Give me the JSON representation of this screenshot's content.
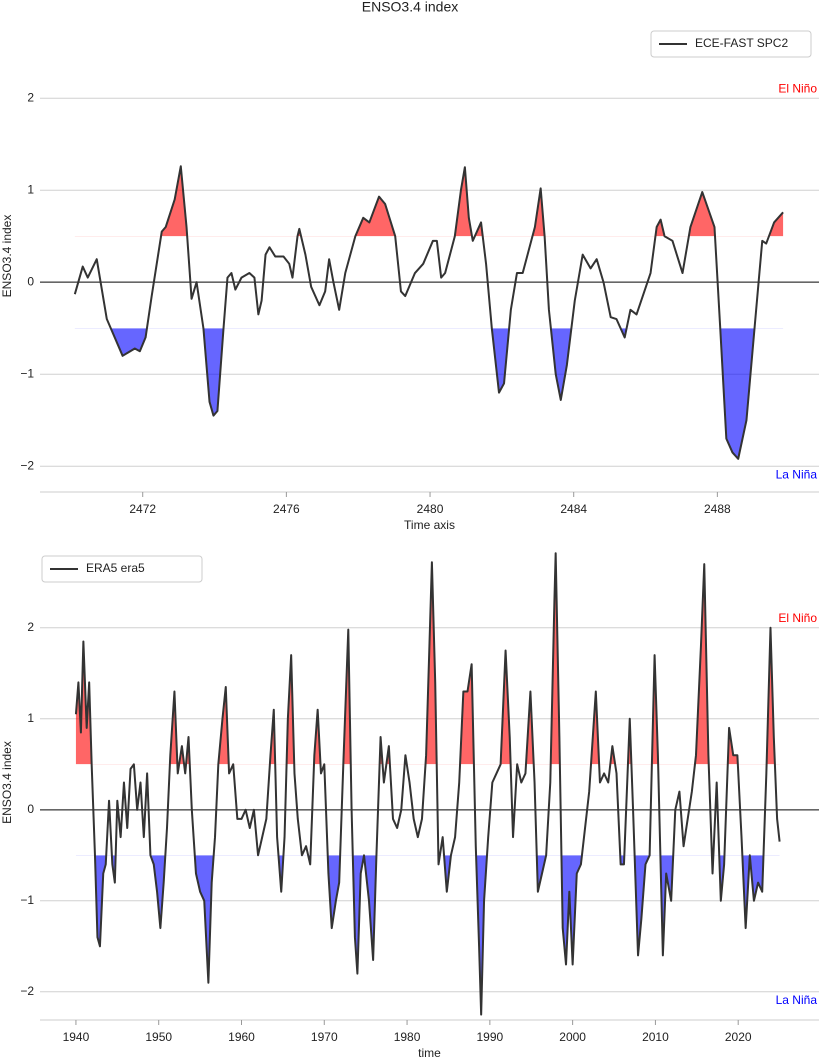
{
  "chart_data": [
    {
      "type": "line",
      "title": "ENSO3.4 index",
      "xlabel": "Time axis",
      "ylabel": "ENSO3.4 index",
      "x": [
        2470.11,
        2470.33,
        2470.47,
        2470.72,
        2471.0,
        2471.44,
        2471.78,
        2471.92,
        2472.08,
        2472.25,
        2472.53,
        2472.64,
        2472.89,
        2473.06,
        2473.22,
        2473.36,
        2473.5,
        2473.69,
        2473.86,
        2473.97,
        2474.08,
        2474.25,
        2474.36,
        2474.47,
        2474.58,
        2474.75,
        2474.97,
        2475.11,
        2475.22,
        2475.31,
        2475.42,
        2475.53,
        2475.69,
        2475.92,
        2476.08,
        2476.17,
        2476.31,
        2476.36,
        2476.53,
        2476.69,
        2476.92,
        2477.08,
        2477.19,
        2477.31,
        2477.47,
        2477.64,
        2477.92,
        2478.14,
        2478.31,
        2478.58,
        2478.75,
        2479.03,
        2479.19,
        2479.31,
        2479.58,
        2479.81,
        2480.08,
        2480.19,
        2480.31,
        2480.42,
        2480.69,
        2480.86,
        2480.97,
        2481.08,
        2481.19,
        2481.42,
        2481.56,
        2481.72,
        2481.92,
        2482.06,
        2482.25,
        2482.42,
        2482.58,
        2482.75,
        2482.92,
        2483.08,
        2483.19,
        2483.31,
        2483.5,
        2483.64,
        2483.81,
        2484.03,
        2484.25,
        2484.47,
        2484.64,
        2484.83,
        2485.03,
        2485.19,
        2485.42,
        2485.58,
        2485.75,
        2486.14,
        2486.31,
        2486.42,
        2486.53,
        2486.75,
        2487.03,
        2487.25,
        2487.58,
        2487.92,
        2488.08,
        2488.25,
        2488.42,
        2488.58,
        2488.81,
        2489.08,
        2489.25,
        2489.36,
        2489.58,
        2489.83
      ],
      "series": [
        {
          "name": "ECE-FAST SPC2",
          "color": "#333333",
          "values": [
            -0.13,
            0.17,
            0.05,
            0.25,
            -0.4,
            -0.8,
            -0.72,
            -0.75,
            -0.6,
            -0.15,
            0.55,
            0.6,
            0.9,
            1.26,
            0.6,
            -0.18,
            0.0,
            -0.5,
            -1.3,
            -1.45,
            -1.4,
            -0.5,
            0.05,
            0.1,
            -0.08,
            0.05,
            0.1,
            0.05,
            -0.35,
            -0.2,
            0.3,
            0.38,
            0.28,
            0.28,
            0.2,
            0.05,
            0.5,
            0.58,
            0.3,
            -0.05,
            -0.25,
            -0.1,
            0.25,
            0.0,
            -0.3,
            0.1,
            0.5,
            0.7,
            0.65,
            0.93,
            0.85,
            0.5,
            -0.1,
            -0.15,
            0.1,
            0.2,
            0.45,
            0.45,
            0.05,
            0.1,
            0.5,
            1.0,
            1.25,
            0.7,
            0.45,
            0.65,
            0.2,
            -0.5,
            -1.2,
            -1.1,
            -0.3,
            0.1,
            0.1,
            0.35,
            0.6,
            1.02,
            0.5,
            -0.3,
            -1.0,
            -1.28,
            -0.9,
            -0.2,
            0.3,
            0.15,
            0.25,
            0.0,
            -0.38,
            -0.4,
            -0.6,
            -0.3,
            -0.35,
            0.1,
            0.6,
            0.68,
            0.5,
            0.45,
            0.1,
            0.6,
            0.98,
            0.6,
            -0.5,
            -1.7,
            -1.85,
            -1.92,
            -1.5,
            -0.3,
            0.45,
            0.42,
            0.65,
            0.76
          ]
        }
      ],
      "xlim": [
        2469.14,
        2490.83
      ],
      "ylim": [
        -2.28,
        2.85
      ],
      "xticks": [
        2472,
        2476,
        2480,
        2484,
        2488
      ],
      "yticks": [
        {
          "value": -2,
          "label": "−2"
        },
        {
          "value": -1,
          "label": "−1"
        },
        0,
        1,
        2
      ],
      "grid": true,
      "legend": "upper right",
      "thresholds": {
        "el_nino": 0.5,
        "la_nina": -0.5
      },
      "el_nino_color": "#ff0000",
      "la_nina_color": "#0000ff",
      "annotations": {
        "el_nino": "El Niño",
        "la_nina": "La Niña"
      }
    },
    {
      "type": "line",
      "xlabel": "time",
      "ylabel": "ENSO3.4 index",
      "x": [
        1940.0,
        1940.3,
        1940.6,
        1940.9,
        1941.3,
        1941.6,
        1941.9,
        1942.3,
        1942.6,
        1942.9,
        1943.3,
        1943.6,
        1944.0,
        1944.4,
        1944.7,
        1945.0,
        1945.4,
        1945.8,
        1946.2,
        1946.6,
        1947.0,
        1947.4,
        1947.8,
        1948.2,
        1948.6,
        1949.0,
        1949.4,
        1949.8,
        1950.2,
        1950.6,
        1951.0,
        1951.4,
        1951.9,
        1952.3,
        1952.8,
        1953.2,
        1953.6,
        1954.0,
        1954.5,
        1955.0,
        1955.5,
        1956.0,
        1956.4,
        1956.8,
        1957.2,
        1957.7,
        1958.1,
        1958.5,
        1959.0,
        1959.5,
        1960.0,
        1960.5,
        1961.0,
        1961.5,
        1962.0,
        1962.5,
        1963.0,
        1963.5,
        1963.9,
        1964.3,
        1964.8,
        1965.2,
        1965.6,
        1966.0,
        1966.4,
        1966.8,
        1967.3,
        1967.8,
        1968.3,
        1968.8,
        1969.2,
        1969.6,
        1970.0,
        1970.5,
        1970.9,
        1971.4,
        1971.8,
        1972.3,
        1972.9,
        1973.3,
        1973.7,
        1974.0,
        1974.4,
        1974.8,
        1975.4,
        1975.9,
        1976.3,
        1976.8,
        1977.2,
        1977.8,
        1978.3,
        1978.8,
        1979.3,
        1979.8,
        1980.3,
        1980.8,
        1981.3,
        1981.8,
        1982.3,
        1982.7,
        1983.0,
        1983.4,
        1983.8,
        1984.3,
        1984.8,
        1985.3,
        1985.8,
        1986.3,
        1986.8,
        1987.3,
        1987.8,
        1988.3,
        1988.7,
        1988.95,
        1989.3,
        1989.8,
        1990.3,
        1990.8,
        1991.3,
        1991.9,
        1992.4,
        1992.8,
        1993.3,
        1993.8,
        1994.3,
        1994.9,
        1995.4,
        1995.8,
        1996.3,
        1996.8,
        1997.3,
        1997.8,
        1997.95,
        1998.4,
        1998.8,
        1999.2,
        1999.6,
        2000.0,
        2000.5,
        2001.0,
        2001.5,
        2002.0,
        2002.8,
        2003.3,
        2003.8,
        2004.3,
        2004.8,
        2005.3,
        2005.8,
        2006.2,
        2006.9,
        2007.3,
        2007.9,
        2008.3,
        2008.8,
        2009.3,
        2009.9,
        2010.3,
        2010.9,
        2011.3,
        2011.9,
        2012.4,
        2012.9,
        2013.4,
        2013.9,
        2014.4,
        2014.9,
        2015.5,
        2015.9,
        2016.4,
        2016.9,
        2017.4,
        2017.9,
        2018.3,
        2018.9,
        2019.4,
        2019.9,
        2020.4,
        2020.9,
        2021.4,
        2021.9,
        2022.4,
        2022.9,
        2023.4,
        2023.9,
        2024.3,
        2024.7,
        2025.0
      ],
      "series": [
        {
          "name": "ERA5 era5",
          "color": "#333333",
          "values": [
            1.05,
            1.4,
            0.85,
            1.85,
            0.9,
            1.4,
            0.5,
            -0.5,
            -1.4,
            -1.5,
            -0.7,
            -0.6,
            0.1,
            -0.6,
            -0.8,
            0.1,
            -0.3,
            0.3,
            -0.2,
            0.45,
            0.5,
            0.0,
            0.3,
            -0.3,
            0.4,
            -0.5,
            -0.6,
            -0.9,
            -1.3,
            -0.8,
            -0.2,
            0.6,
            1.3,
            0.4,
            0.7,
            0.4,
            0.8,
            0.0,
            -0.7,
            -0.9,
            -1.0,
            -1.9,
            -0.8,
            -0.3,
            0.5,
            1.0,
            1.35,
            0.4,
            0.5,
            -0.1,
            -0.1,
            0.0,
            -0.2,
            0.0,
            -0.5,
            -0.3,
            -0.1,
            0.6,
            1.1,
            -0.3,
            -0.9,
            -0.3,
            1.0,
            1.7,
            0.4,
            -0.1,
            -0.5,
            -0.4,
            -0.6,
            0.6,
            1.1,
            0.4,
            0.5,
            -0.7,
            -1.3,
            -1.0,
            -0.8,
            0.5,
            1.98,
            0.0,
            -1.4,
            -1.8,
            -0.7,
            -0.5,
            -1.0,
            -1.65,
            -0.5,
            0.8,
            0.3,
            0.7,
            -0.1,
            -0.2,
            0.0,
            0.6,
            0.3,
            -0.1,
            -0.3,
            -0.1,
            0.6,
            1.8,
            2.72,
            1.4,
            -0.6,
            -0.3,
            -0.9,
            -0.5,
            -0.3,
            0.3,
            1.3,
            1.3,
            1.6,
            -0.4,
            -1.5,
            -2.25,
            -1.0,
            -0.3,
            0.3,
            0.4,
            0.5,
            1.75,
            0.8,
            -0.3,
            0.5,
            0.3,
            0.4,
            1.3,
            0.3,
            -0.9,
            -0.7,
            -0.5,
            0.3,
            2.3,
            2.82,
            0.8,
            -1.3,
            -1.7,
            -0.9,
            -1.7,
            -0.7,
            -0.6,
            -0.2,
            0.2,
            1.3,
            0.3,
            0.4,
            0.3,
            0.7,
            0.4,
            -0.6,
            -0.6,
            1.0,
            0.0,
            -1.6,
            -1.2,
            -0.6,
            -0.5,
            1.7,
            0.6,
            -1.6,
            -0.7,
            -1.0,
            0.0,
            0.2,
            -0.4,
            -0.1,
            0.2,
            0.6,
            1.8,
            2.7,
            0.6,
            -0.7,
            0.3,
            -1.0,
            -0.6,
            0.9,
            0.6,
            0.6,
            -0.3,
            -1.3,
            -0.5,
            -1.0,
            -0.8,
            -0.9,
            0.4,
            2.0,
            0.8,
            -0.1,
            -0.35
          ]
        }
      ],
      "xlim": [
        1935.66,
        2029.76
      ],
      "ylim": [
        -2.31,
        2.91
      ],
      "xticks": [
        1940,
        1950,
        1960,
        1970,
        1980,
        1990,
        2000,
        2010,
        2020
      ],
      "yticks": [
        {
          "value": -2,
          "label": "−2"
        },
        {
          "value": -1,
          "label": "−1"
        },
        0,
        1,
        2
      ],
      "grid": true,
      "legend": "upper left",
      "thresholds": {
        "el_nino": 0.5,
        "la_nina": -0.5
      },
      "el_nino_color": "#ff0000",
      "la_nina_color": "#0000ff",
      "annotations": {
        "el_nino": "El Niño",
        "la_nina": "La Niña"
      }
    }
  ]
}
